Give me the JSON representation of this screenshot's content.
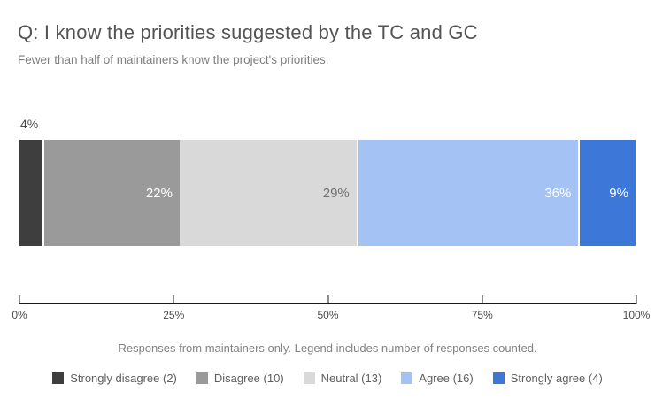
{
  "header": {
    "title": "Q: I know the priorities suggested by the TC and GC",
    "subtitle": "Fewer than half of maintainers know the project's priorities."
  },
  "chart_data": {
    "type": "bar",
    "stacked": true,
    "orientation": "horizontal",
    "categories": [
      "Strongly disagree",
      "Disagree",
      "Neutral",
      "Agree",
      "Strongly agree"
    ],
    "counts": [
      2,
      10,
      13,
      16,
      4
    ],
    "values_pct": [
      4,
      22,
      29,
      36,
      9
    ],
    "segment_labels": [
      "4%",
      "22%",
      "29%",
      "36%",
      "9%"
    ],
    "colors": [
      "#3e3e3e",
      "#9a9a9a",
      "#d9d9d9",
      "#a4c2f4",
      "#3d78d8"
    ],
    "label_colors": [
      "#4a4a4a",
      "#ffffff",
      "#757575",
      "#ffffff",
      "#ffffff"
    ],
    "label_outside": [
      true,
      false,
      false,
      false,
      false
    ],
    "gap_after": [
      true,
      false,
      true,
      true,
      false
    ],
    "x_ticks": [
      "0%",
      "25%",
      "50%",
      "75%",
      "100%"
    ],
    "x_tick_values": [
      0,
      25,
      50,
      75,
      100
    ],
    "xlim": [
      0,
      100
    ],
    "grid": false,
    "legend_position": "bottom"
  },
  "footer": {
    "note": "Responses from maintainers only. Legend includes number of responses counted."
  },
  "legend": {
    "items": [
      {
        "label": "Strongly disagree (2)",
        "color": "#3e3e3e"
      },
      {
        "label": "Disagree (10)",
        "color": "#9a9a9a"
      },
      {
        "label": "Neutral (13)",
        "color": "#d9d9d9"
      },
      {
        "label": "Agree (16)",
        "color": "#a4c2f4"
      },
      {
        "label": "Strongly agree (4)",
        "color": "#3d78d8"
      }
    ]
  }
}
